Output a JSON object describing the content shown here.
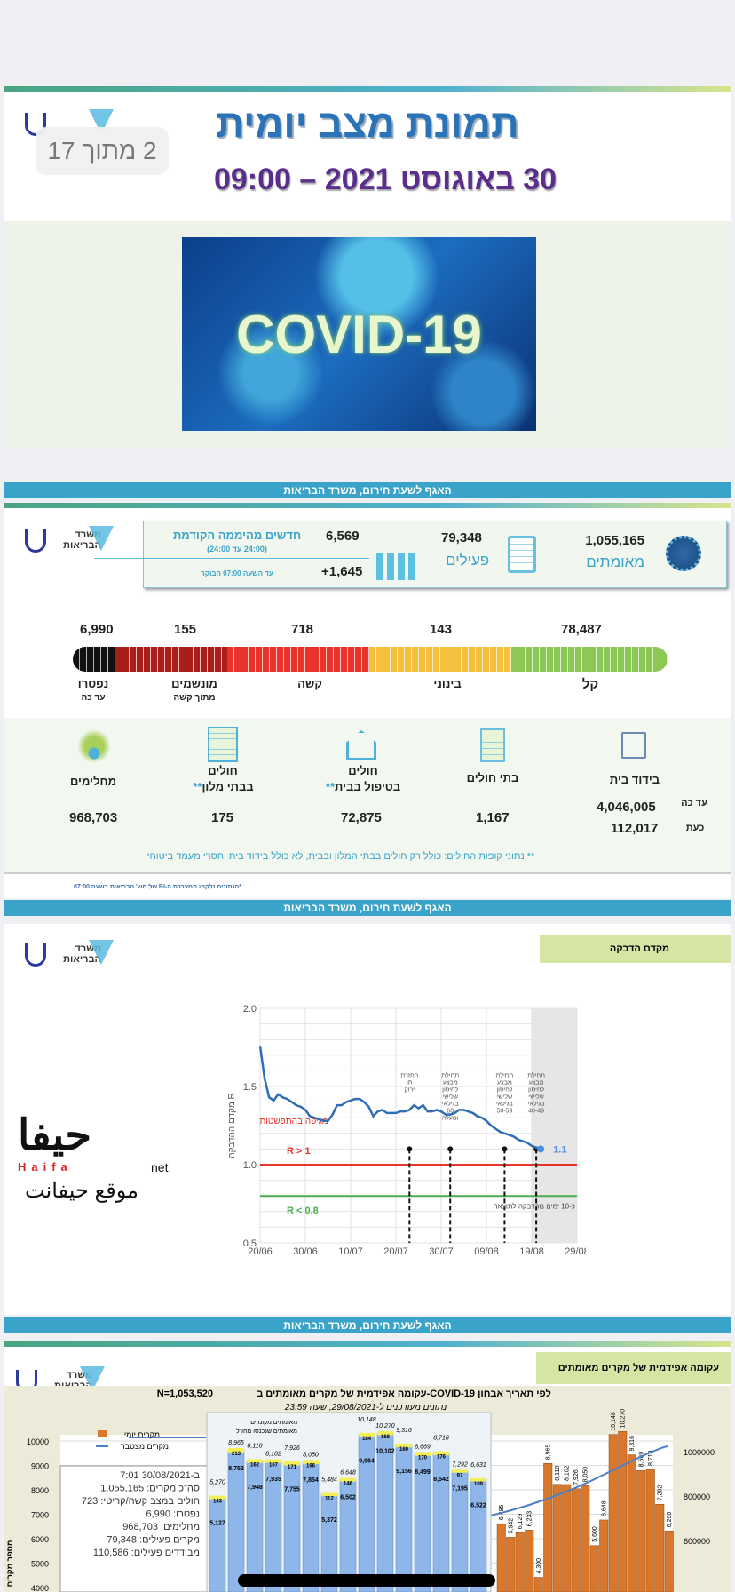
{
  "page_indicator": "2 מתוך 17",
  "ministry_logo_text": "משרד הבריאות",
  "slide1": {
    "title": "תמונת מצב יומית",
    "date": "30 באוגוסט 2021 – 09:00",
    "image_text": "COVID-19"
  },
  "banner_text": "האגף לשעת חירום, משרד הבריאות",
  "slide2": {
    "confirmed": {
      "value": "1,055,165",
      "label": "מאומתים"
    },
    "active": {
      "value": "79,348",
      "label": "פעילים"
    },
    "new_cases": {
      "title": "חדשים מהיממה הקודמת",
      "subtitle": "(24:00 עד 24:00)",
      "value": "6,569",
      "since_label": "עד השעה 07:00 הבוקר",
      "since_value": "+1,645"
    },
    "severity": [
      {
        "label": "קל",
        "value": "78,487",
        "color": "#8dc856"
      },
      {
        "label": "בינוני",
        "value": "143",
        "color": "#f4c03d"
      },
      {
        "label": "קשה",
        "value": "718",
        "color": "#e8322a"
      },
      {
        "label": "מונשמים",
        "sublabel": "מתוך קשה",
        "value": "155",
        "color": "#a81f1a"
      },
      {
        "label": "נפטרו",
        "sublabel": "עד כה",
        "value": "6,990",
        "color": "#111111"
      }
    ],
    "isolation": {
      "label": "בידוד בית",
      "so_far_label": "עד כה",
      "so_far": "4,046,005",
      "now_label": "כעת",
      "now": "112,017"
    },
    "hospitals": {
      "label": "בתי חולים",
      "value": "1,167"
    },
    "home_care": {
      "label1": "חולים",
      "label2": "בטיפול בבית",
      "stars": "**",
      "value": "72,875"
    },
    "hotels": {
      "label1": "חולים",
      "label2": "בבתי מלון",
      "stars": "**",
      "value": "175"
    },
    "recovered": {
      "label": "מחלימים",
      "value": "968,703"
    },
    "footnote": "** נתוני קופות החולים: כולל רק חולים בבתי המלון ובבית, לא כולל בידוד בית וחסרי מעמד ביטוחי",
    "source_note": "*הנתונים נלקחו ממערכת ה-BI של מש' הבריאות בשעה 07:00"
  },
  "slide3": {
    "section_label": "מקדם הדבקה"
  },
  "chart_data": [
    {
      "type": "line",
      "title": "מקדם הדבקה",
      "ylabel": "מקדם ההדבקה R",
      "ylim": [
        0.5,
        2.0
      ],
      "yticks": [
        "0.5",
        "1.0",
        "1.5",
        "2.0"
      ],
      "xticks": [
        "20/06",
        "30/06",
        "10/07",
        "20/07",
        "30/07",
        "09/08",
        "19/08",
        "29/08"
      ],
      "x_days_from_20_06": [
        0,
        1,
        2,
        3,
        4,
        5,
        6,
        7,
        8,
        9,
        10,
        11,
        12,
        13,
        14,
        15,
        16,
        17,
        18,
        19,
        20,
        21,
        22,
        23,
        24,
        25,
        26,
        27,
        28,
        29,
        30,
        31,
        32,
        33,
        34,
        35,
        36,
        37,
        38,
        39,
        40,
        41,
        42,
        43,
        44,
        45,
        46,
        47,
        48,
        49,
        50,
        51,
        52,
        53,
        54,
        55,
        56,
        57,
        58,
        59,
        60,
        61,
        62
      ],
      "r_values": [
        1.76,
        1.55,
        1.43,
        1.41,
        1.45,
        1.43,
        1.42,
        1.4,
        1.38,
        1.37,
        1.35,
        1.31,
        1.3,
        1.29,
        1.28,
        1.28,
        1.32,
        1.38,
        1.38,
        1.4,
        1.41,
        1.42,
        1.42,
        1.4,
        1.37,
        1.31,
        1.34,
        1.35,
        1.33,
        1.33,
        1.33,
        1.34,
        1.34,
        1.35,
        1.38,
        1.36,
        1.38,
        1.34,
        1.34,
        1.35,
        1.34,
        1.32,
        1.32,
        1.33,
        1.35,
        1.35,
        1.34,
        1.33,
        1.31,
        1.3,
        1.28,
        1.25,
        1.23,
        1.21,
        1.2,
        1.19,
        1.18,
        1.16,
        1.15,
        1.14,
        1.12,
        1.11,
        1.1
      ],
      "last_value_label": "1.1",
      "reference_lines": [
        {
          "value": 1.0,
          "label": "R > 1",
          "color": "#e8322a"
        },
        {
          "value": 0.8,
          "label": "R < 0.8",
          "color": "#4cae4f"
        }
      ],
      "zone_label": "מגיפה בהתפשטות",
      "events": [
        {
          "day": 33,
          "label": "החזרת תו ירוק"
        },
        {
          "day": 42,
          "label": "תחילת מבצע לחיסון שלישי בגילאי 60 ומעלה"
        },
        {
          "day": 54,
          "label": "תחילת מבצע לחיסון שלישי בגילאי 50-59"
        },
        {
          "day": 61,
          "label": "תחילת מבצע לחיסון שלישי בגילאי 40-49"
        }
      ],
      "shaded_from_day": 60,
      "shaded_label": "כ-10 ימים מהדבקה לתוצאה"
    },
    {
      "type": "bar",
      "title": "עקומה אפידמית של מקרים מאומתים ב-COVID-19 לפי תאריך אבחון",
      "n_label": "N=1,053,520",
      "subtitle": "נתונים מעודכנים ל-29/08/2021, שעה 23:59",
      "legend": [
        "מקרים יומי",
        "מקרים מצטבר"
      ],
      "inset_legend": [
        "מאומתים מקומיים",
        "מאומתים שנכנסו מחו\"ל"
      ],
      "yticks_left": [
        "10000",
        "9000",
        "8000",
        "7000",
        "6000",
        "5000",
        "4000"
      ],
      "yticks_right": [
        "1000000",
        "800000",
        "600000"
      ],
      "ylabel": "מספר מקרים",
      "inset_totals": [
        "5,270",
        "8,965",
        "8,110",
        "8,102",
        "7,926",
        "8,050",
        "5,484",
        "6,648",
        "10,148",
        "10,270",
        "9,316",
        "8,669",
        "8,718",
        "7,292",
        "6,631"
      ],
      "inset_local": [
        5127,
        8752,
        7948,
        7935,
        7755,
        7854,
        5372,
        6502,
        9964,
        10102,
        9156,
        8499,
        8542,
        7195,
        6522
      ],
      "inset_abroad": [
        143,
        213,
        162,
        167,
        171,
        196,
        112,
        146,
        184,
        168,
        160,
        170,
        176,
        97,
        109
      ],
      "right_bars": [
        6495,
        5942,
        6129,
        6233,
        4300,
        8965,
        8110,
        8102,
        7926,
        8050,
        5600,
        6648,
        10148,
        10270,
        9316,
        8669,
        8718,
        7292,
        6200
      ],
      "summary": [
        "ב-30/08/2021 7:01",
        "סה\"כ מקרים: 1,055,165",
        "חולים במצב קשה/קריטי: 723",
        "נפטרו: 6,990",
        "מחלימים: 968,703",
        "מקרים פעילים: 79,348",
        "מבודדים פעילים: 110,586"
      ]
    }
  ],
  "slide4": {
    "section_label": "עקומה אפידמית של מקרים מאומתים"
  },
  "watermark": {
    "text": "حيفا",
    "latin": "Haifa",
    "net": "net",
    "tagline": "موقع حيفانت"
  }
}
